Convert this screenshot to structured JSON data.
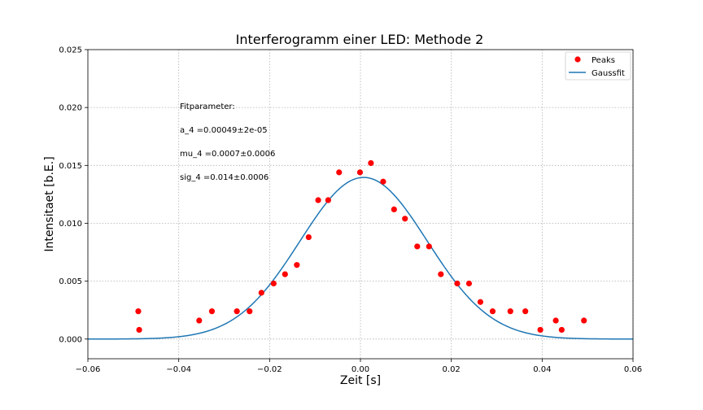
{
  "chart_data": {
    "type": "scatter",
    "title": "Interferogramm einer LED: Methode 2",
    "xlabel": "Zeit [s]",
    "ylabel": "Intensitaet [b.E.]",
    "xlim": [
      -0.06,
      0.06
    ],
    "ylim": [
      -0.0017,
      0.025
    ],
    "xticks": [
      -0.06,
      -0.04,
      -0.02,
      0.0,
      0.02,
      0.04,
      0.06
    ],
    "xtick_labels": [
      "−0.06",
      "−0.04",
      "−0.02",
      "0.00",
      "0.02",
      "0.04",
      "0.06"
    ],
    "yticks": [
      0.0,
      0.005,
      0.01,
      0.015,
      0.02,
      0.025
    ],
    "ytick_labels": [
      "0.000",
      "0.005",
      "0.010",
      "0.015",
      "0.020",
      "0.025"
    ],
    "grid": true,
    "legend_position": "top-right",
    "series": [
      {
        "name": "Peaks",
        "kind": "scatter",
        "color": "#ff0000",
        "x": [
          -0.0489,
          -0.0487,
          -0.0355,
          -0.0327,
          -0.0272,
          -0.0244,
          -0.0218,
          -0.0191,
          -0.0166,
          -0.014,
          -0.0114,
          -0.0093,
          -0.0071,
          -0.0047,
          -0.0001,
          0.0023,
          0.005,
          0.0074,
          0.0098,
          0.0125,
          0.0151,
          0.0177,
          0.0213,
          0.0239,
          0.0264,
          0.0291,
          0.033,
          0.0363,
          0.0396,
          0.043,
          0.0443,
          0.0492
        ],
        "y": [
          0.0024,
          0.0008,
          0.0016,
          0.0024,
          0.0024,
          0.0024,
          0.004,
          0.0048,
          0.0056,
          0.0064,
          0.0088,
          0.012,
          0.012,
          0.0144,
          0.0144,
          0.0152,
          0.0136,
          0.0112,
          0.0104,
          0.008,
          0.008,
          0.0056,
          0.0048,
          0.0048,
          0.0032,
          0.0024,
          0.0024,
          0.0024,
          0.0008,
          0.0016,
          0.0008,
          0.0016
        ]
      },
      {
        "name": "Gaussfit",
        "kind": "line",
        "color": "#1f77b4",
        "model": "gaussian",
        "a": 0.00049,
        "mu": 0.0007,
        "sigma": 0.014
      }
    ],
    "annotations": [
      "Fitparameter:",
      "a_4 =0.00049±2e-05",
      "mu_4 =0.0007±0.0006",
      "sig_4 =0.014±0.0006"
    ]
  }
}
